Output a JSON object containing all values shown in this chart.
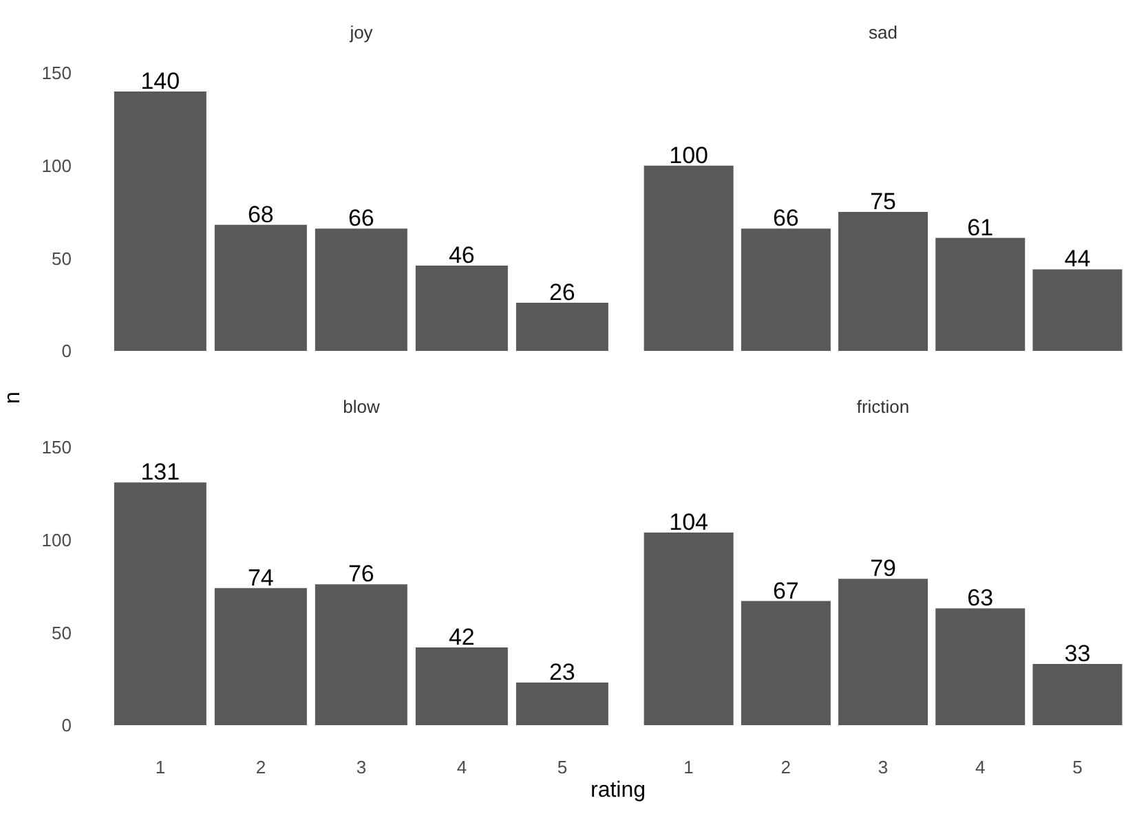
{
  "chart_data": [
    {
      "type": "bar",
      "title": "joy",
      "ylabel": "n",
      "categories": [
        "1",
        "2",
        "3",
        "4",
        "5"
      ],
      "values": [
        140,
        68,
        66,
        46,
        26
      ],
      "color": "#595959",
      "ylim": [
        0,
        150
      ],
      "yticks": [
        0,
        50,
        100,
        150
      ],
      "data_labels": true,
      "tick_labels": "y"
    },
    {
      "type": "bar",
      "title": "sad",
      "categories": [
        "1",
        "2",
        "3",
        "4",
        "5"
      ],
      "values": [
        100,
        66,
        75,
        61,
        44
      ],
      "color": "#595959",
      "ylim": [
        0,
        150
      ],
      "yticks": [
        0,
        50,
        100,
        150
      ],
      "data_labels": true,
      "tick_labels": false
    },
    {
      "type": "bar",
      "title": "blow",
      "xlabel": "rating",
      "categories": [
        "1",
        "2",
        "3",
        "4",
        "5"
      ],
      "values": [
        131,
        74,
        76,
        42,
        23
      ],
      "color": "#595959",
      "ylim": [
        0,
        150
      ],
      "yticks": [
        0,
        50,
        100,
        150
      ],
      "data_labels": true
    },
    {
      "type": "bar",
      "title": "friction",
      "categories": [
        "1",
        "2",
        "3",
        "4",
        "5"
      ],
      "values": [
        104,
        67,
        79,
        63,
        33
      ],
      "color": "#595959",
      "ylim": [
        0,
        150
      ],
      "yticks": [
        0,
        50,
        100,
        150
      ],
      "data_labels": true,
      "tick_labels": "x"
    }
  ]
}
